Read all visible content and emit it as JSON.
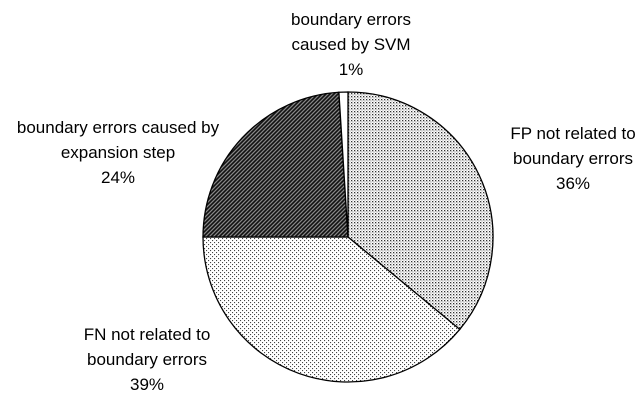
{
  "chart_data": {
    "type": "pie",
    "categories": [
      "FP not related to boundary errors",
      "FN not related to boundary errors",
      "boundary errors caused by expansion step",
      "boundary errors caused by SVM"
    ],
    "values": [
      36,
      39,
      24,
      1
    ],
    "value_labels": [
      "36%",
      "39%",
      "24%",
      "1%"
    ]
  }
}
